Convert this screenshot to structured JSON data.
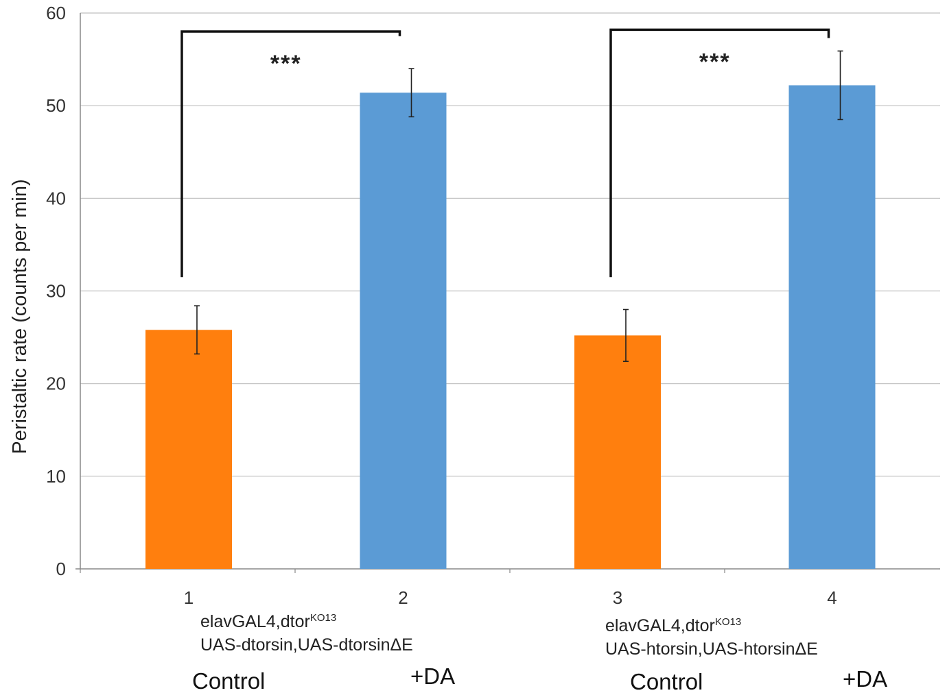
{
  "colors": {
    "control": "#FF7F0E",
    "treated": "#5B9BD5",
    "grid": "#bfbfbf",
    "axis": "#888888",
    "bracket": "#111111"
  },
  "chart_data": {
    "type": "bar",
    "categories": [
      "1",
      "2",
      "3",
      "4"
    ],
    "values": [
      25.8,
      51.4,
      25.2,
      52.2
    ],
    "errors": [
      2.6,
      2.6,
      2.8,
      3.7
    ],
    "bar_colors": [
      "control",
      "treated",
      "control",
      "treated"
    ],
    "ylabel": "Peristaltic rate (counts per min)",
    "xlabel": "",
    "ylim": [
      0,
      60
    ],
    "yticks": [
      "0",
      "10",
      "20",
      "30",
      "40",
      "50",
      "60"
    ],
    "grid": true,
    "significance": [
      {
        "from": 1,
        "to": 2,
        "label": "***",
        "left_value": 31.5,
        "right_value": 57.5,
        "top_value": 58.0
      },
      {
        "from": 3,
        "to": 4,
        "label": "***",
        "left_value": 31.5,
        "right_value": 57.3,
        "top_value": 58.2
      }
    ]
  },
  "annotations": {
    "group1": {
      "line1": "elavGAL4,dtor",
      "line1_sup": "KO13",
      "line2": "UAS-dtorsin,UAS-dtorsinΔE",
      "control": "Control",
      "treated": "+DA"
    },
    "group2": {
      "line1": "elavGAL4,dtor",
      "line1_sup": "KO13",
      "line2": "UAS-htorsin,UAS-htorsinΔE",
      "control": "Control",
      "treated": "+DA"
    }
  }
}
